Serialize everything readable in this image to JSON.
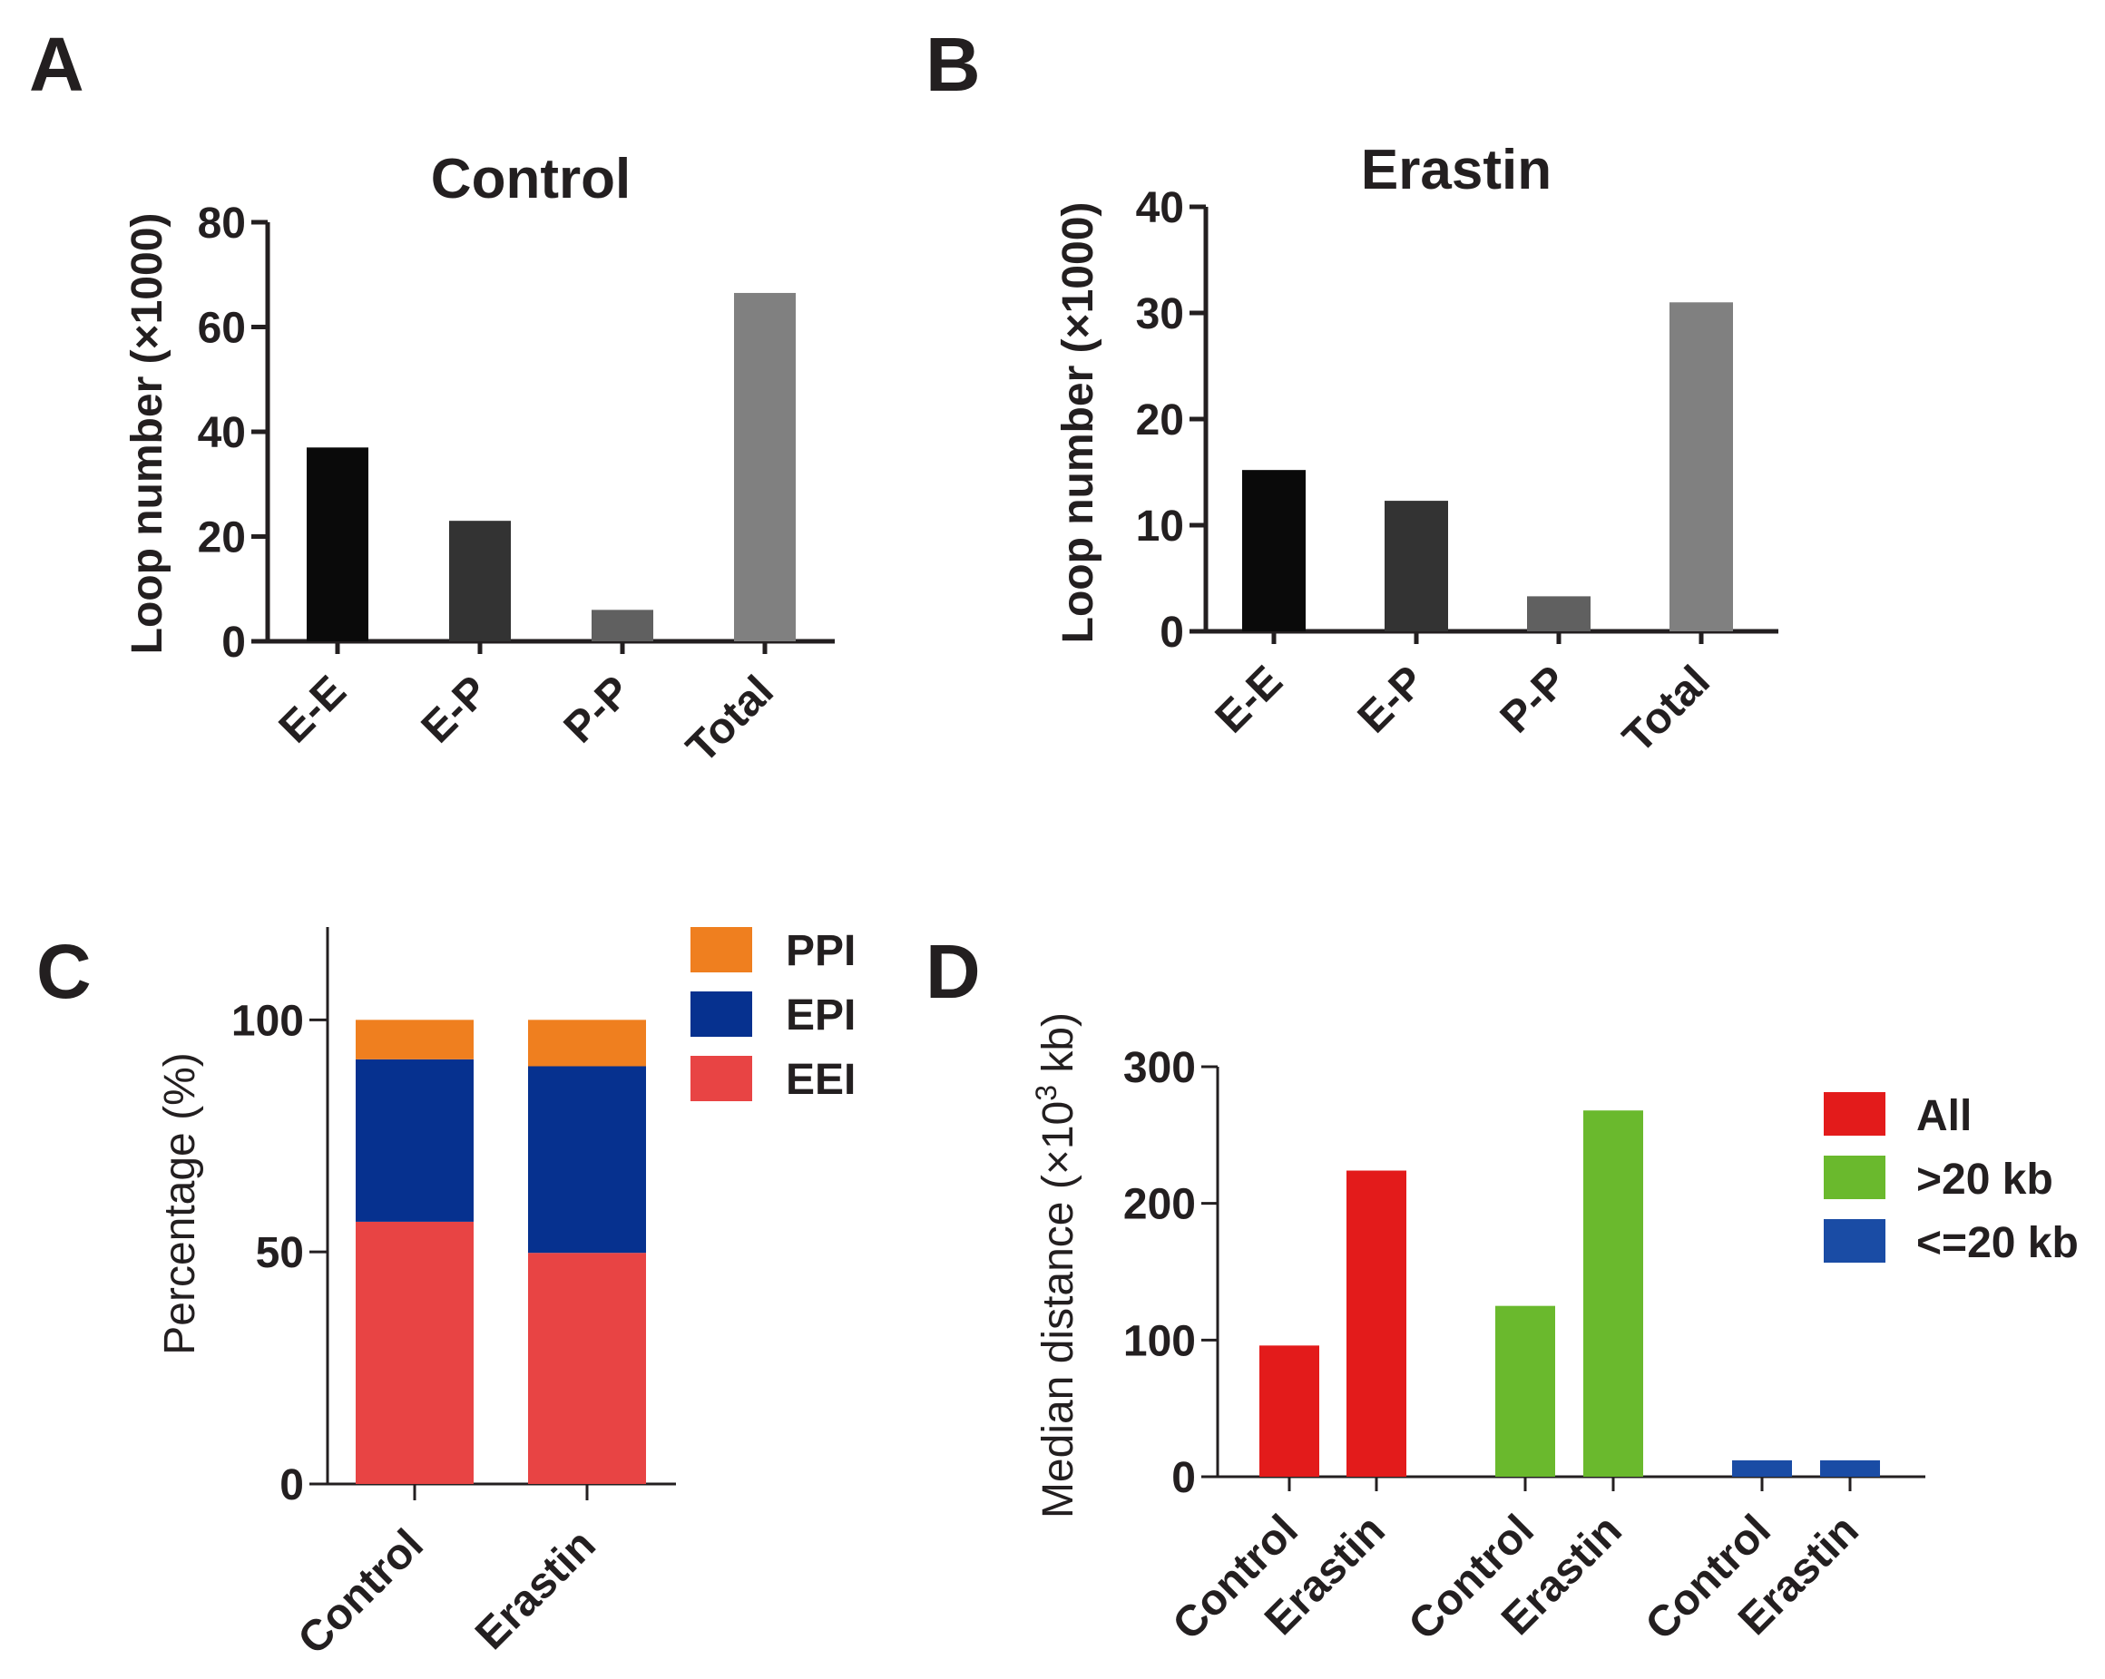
{
  "panels": {
    "a": "A",
    "b": "B",
    "c": "C",
    "d": "D"
  },
  "chart_data": [
    {
      "panel": "A",
      "type": "bar",
      "title": "Control",
      "xlabel": "",
      "ylabel": "Loop number (×1000)",
      "ylim": [
        0,
        80
      ],
      "yticks": [
        0,
        20,
        40,
        60,
        80
      ],
      "ytick_labels": [
        "0",
        "20",
        "40",
        "60",
        "80"
      ],
      "categories": [
        "E-E",
        "E-P",
        "P-P",
        "Total"
      ],
      "values": [
        37,
        23,
        6,
        66.5
      ],
      "colors": [
        "#0a0a0a",
        "#333333",
        "#606060",
        "#808080"
      ]
    },
    {
      "panel": "B",
      "type": "bar",
      "title": "Erastin",
      "xlabel": "",
      "ylabel": "Loop number (×1000)",
      "ylim": [
        0,
        40
      ],
      "yticks": [
        0,
        10,
        20,
        30,
        40
      ],
      "ytick_labels": [
        "0",
        "10",
        "20",
        "30",
        "40"
      ],
      "categories": [
        "E-E",
        "E-P",
        "P-P",
        "Total"
      ],
      "values": [
        15.2,
        12.3,
        3.3,
        31
      ],
      "colors": [
        "#0a0a0a",
        "#333333",
        "#606060",
        "#808080"
      ]
    },
    {
      "panel": "C",
      "type": "bar",
      "stacked": true,
      "title": "",
      "xlabel": "",
      "ylabel": "Percentage (%)",
      "ylim": [
        0,
        120
      ],
      "yticks": [
        0,
        50,
        100
      ],
      "ytick_labels": [
        "0",
        "50",
        "100"
      ],
      "categories": [
        "Control",
        "Erastin"
      ],
      "series": [
        {
          "name": "EEI",
          "color": "#e84444",
          "values": [
            56.5,
            49.8
          ]
        },
        {
          "name": "EPI",
          "color": "#06318f",
          "values": [
            35,
            40.2
          ]
        },
        {
          "name": "PPI",
          "color": "#ef7f1f",
          "values": [
            8.5,
            10
          ]
        }
      ],
      "legend": [
        "PPI",
        "EPI",
        "EEI"
      ],
      "legend_position": "top-right"
    },
    {
      "panel": "D",
      "type": "bar",
      "title": "",
      "xlabel": "",
      "ylabel_prefix": "Median distance (×10",
      "ylabel_sup": "3",
      "ylabel_suffix": " kb)",
      "ylim": [
        0,
        300
      ],
      "yticks": [
        0,
        100,
        200,
        300
      ],
      "ytick_labels": [
        "0",
        "100",
        "200",
        "300"
      ],
      "groups": [
        "All",
        ">20 kb",
        "<=20 kb"
      ],
      "categories": [
        "Control",
        "Erastin"
      ],
      "series": [
        {
          "name": "All",
          "color": "#e31b1b",
          "values": [
            96,
            224
          ]
        },
        {
          "name": ">20 kb",
          "color": "#6ab92d",
          "values": [
            125,
            268
          ]
        },
        {
          "name": "<=20 kb",
          "color": "#1a4ca5",
          "values": [
            12,
            12
          ]
        }
      ],
      "legend_position": "right"
    }
  ]
}
